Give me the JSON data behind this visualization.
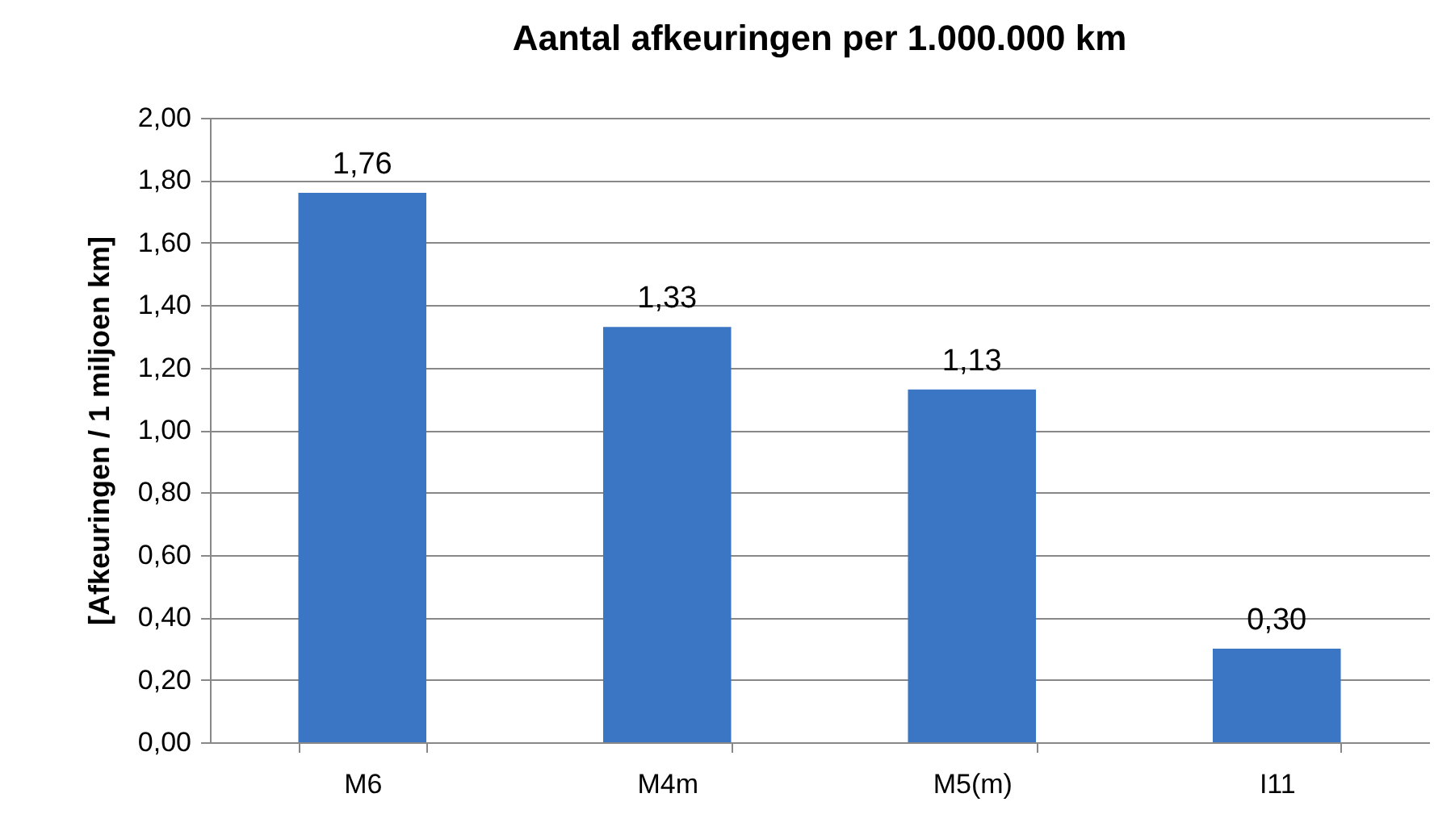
{
  "chart_data": {
    "type": "bar",
    "title": "Aantal afkeuringen per 1.000.000 km",
    "ylabel": "[Afkeuringen / 1 miljoen km]",
    "categories": [
      "M6",
      "M4m",
      "M5(m)",
      "I11"
    ],
    "values": [
      1.76,
      1.33,
      1.13,
      0.3
    ],
    "value_labels": [
      "1,76",
      "1,33",
      "1,13",
      "0,30"
    ],
    "color": "#3b76c4",
    "ylim": [
      0,
      2
    ],
    "yticks": [
      {
        "value": 0,
        "label": "0,00"
      },
      {
        "value": 0.2,
        "label": "0,20"
      },
      {
        "value": 0.4,
        "label": "0,40"
      },
      {
        "value": 0.6,
        "label": "0,60"
      },
      {
        "value": 0.8,
        "label": "0,80"
      },
      {
        "value": 1,
        "label": "1,00"
      },
      {
        "value": 1.2,
        "label": "1,20"
      },
      {
        "value": 1.4,
        "label": "1,40"
      },
      {
        "value": 1.6,
        "label": "1,60"
      },
      {
        "value": 1.8,
        "label": "1,80"
      },
      {
        "value": 2,
        "label": "2,00"
      }
    ],
    "grid": "y"
  }
}
